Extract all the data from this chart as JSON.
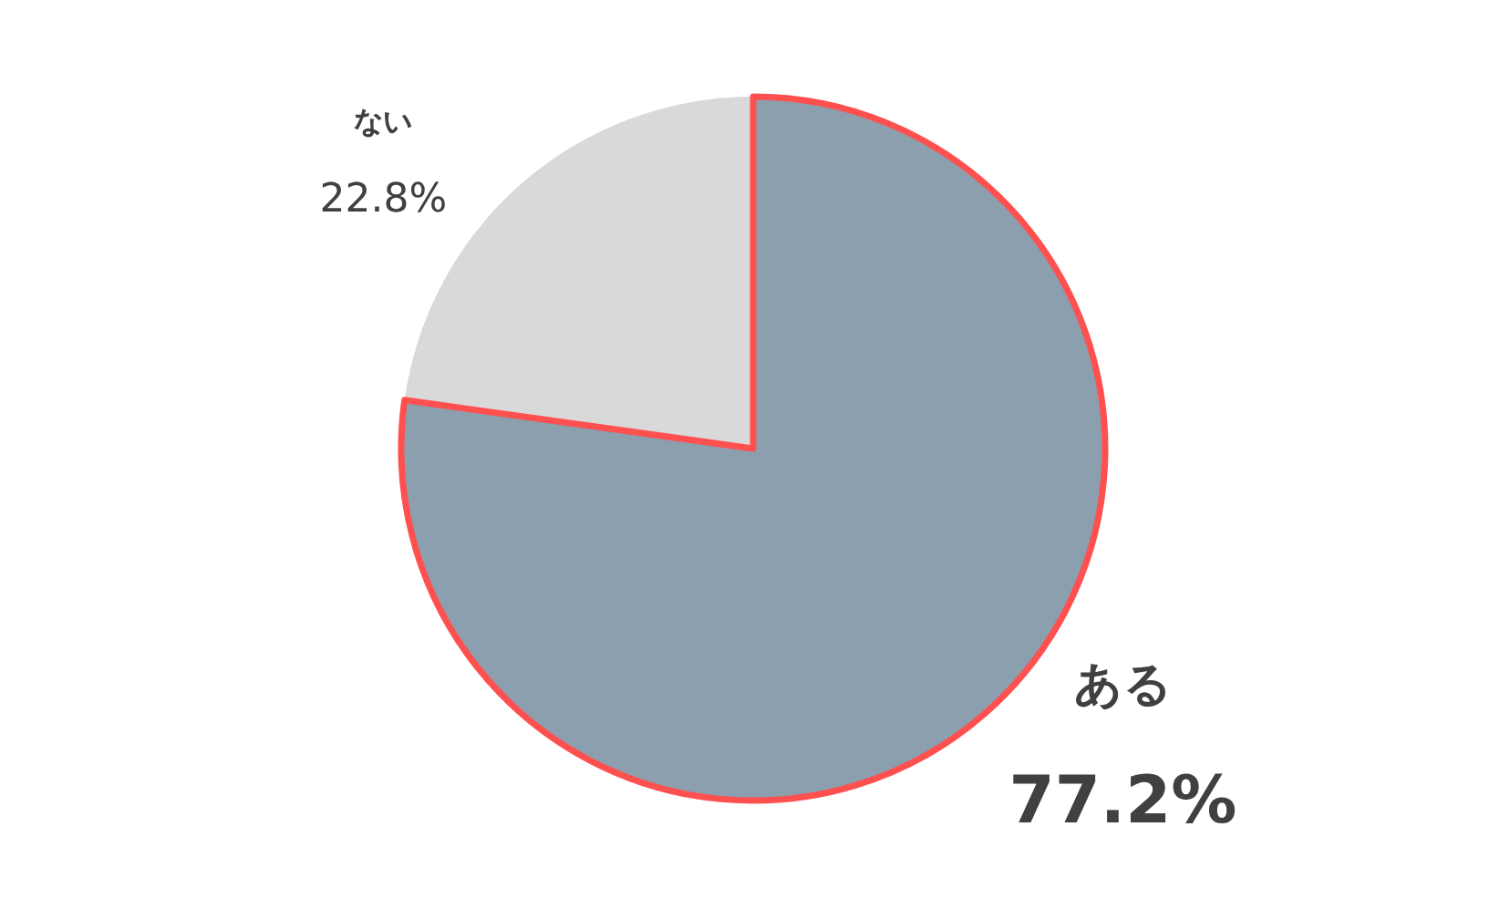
{
  "chart_data": {
    "type": "pie",
    "categories": [
      "ある",
      "ない"
    ],
    "values": [
      77.2,
      22.8
    ],
    "colors": [
      "#8c9fae",
      "#d9d9d9"
    ],
    "value_labels": [
      "77.2%",
      "22.8%"
    ]
  }
}
